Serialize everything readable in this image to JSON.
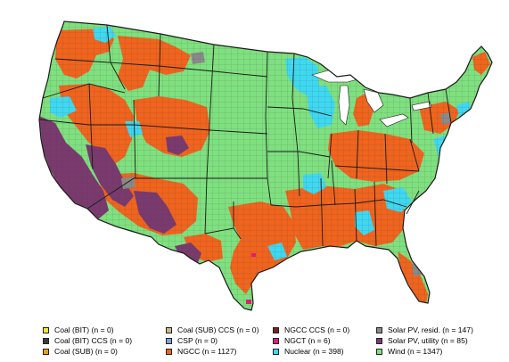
{
  "palette": {
    "wind": "#7fe07f",
    "ngcc": "#f0641e",
    "nuclear": "#3fd8f0",
    "solar_utility": "#7a3a6e",
    "solar_resid": "#8a8a8a",
    "ngct": "#e8187a",
    "water": "#ffffff",
    "border": "#1a1a1a"
  },
  "legend": {
    "items": [
      {
        "label": "Coal (BIT) (n = 0)",
        "color": "#e8e83a"
      },
      {
        "label": "Coal (BIT) CCS (n = 0)",
        "color": "#3a3a3a"
      },
      {
        "label": "Coal (SUB) (n = 0)",
        "color": "#e8a020"
      },
      {
        "label": "Coal (SUB) CCS (n = 0)",
        "color": "#c8b890"
      },
      {
        "label": "CSP (n = 0)",
        "color": "#7aa0e8"
      },
      {
        "label": "NGCC (n = 1127)",
        "color": "#f0641e"
      },
      {
        "label": "NGCC CCS (n = 0)",
        "color": "#7a2020"
      },
      {
        "label": "NGCT (n = 6)",
        "color": "#e8187a"
      },
      {
        "label": "Nuclear (n = 398)",
        "color": "#3fd8f0"
      },
      {
        "label": "Solar PV, resid. (n = 147)",
        "color": "#8a8a8a"
      },
      {
        "label": "Solar PV, utility (n = 85)",
        "color": "#7a3a6e"
      },
      {
        "label": "Wind (n = 1347)",
        "color": "#7fe07f"
      }
    ]
  }
}
